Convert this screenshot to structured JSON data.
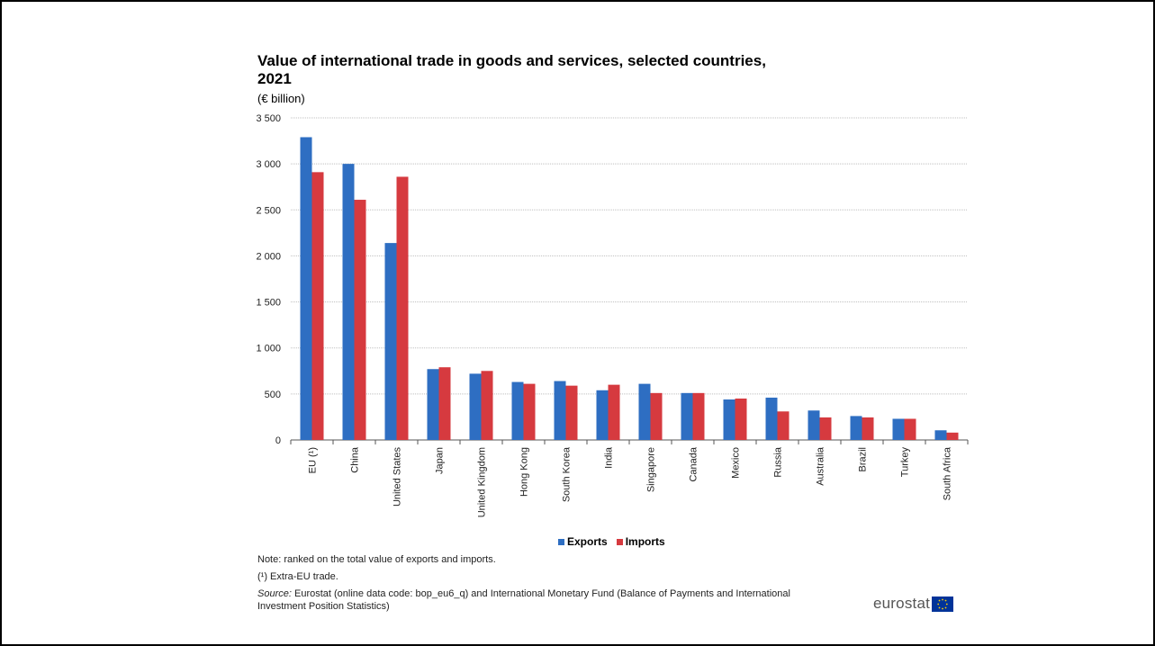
{
  "title": "Value of international trade in goods and services, selected countries, 2021",
  "unit": "(€ billion)",
  "colors": {
    "exports": "#2e6ec2",
    "imports": "#d63a3f",
    "grid": "#bfbfbf",
    "axis": "#555555"
  },
  "chart_data": {
    "type": "bar",
    "categories": [
      "EU (¹)",
      "China",
      "United States",
      "Japan",
      "United Kingdom",
      "Hong Kong",
      "South Korea",
      "India",
      "Singapore",
      "Canada",
      "Mexico",
      "Russia",
      "Australia",
      "Brazil",
      "Turkey",
      "South Africa"
    ],
    "series": [
      {
        "name": "Exports",
        "values": [
          3290,
          3000,
          2140,
          770,
          720,
          630,
          640,
          540,
          610,
          510,
          440,
          460,
          320,
          260,
          230,
          105
        ]
      },
      {
        "name": "Imports",
        "values": [
          2910,
          2610,
          2860,
          790,
          750,
          610,
          590,
          600,
          510,
          510,
          450,
          310,
          245,
          245,
          230,
          80
        ]
      }
    ],
    "yticks": [
      "0",
      "500",
      "1 000",
      "1 500",
      "2 000",
      "2 500",
      "3 000",
      "3 500"
    ],
    "ylim": [
      0,
      3500
    ],
    "grid": true,
    "legend_position": "bottom-center"
  },
  "notes": {
    "ranked": "Note: ranked on the total value of exports and imports.",
    "footnote": "(¹) Extra-EU trade.",
    "source_label": "Source:",
    "source_text": "Eurostat (online data code: bop_eu6_q) and International Monetary Fund (Balance of Payments and International Investment Position Statistics)"
  },
  "logo": {
    "text": "eurostat"
  }
}
